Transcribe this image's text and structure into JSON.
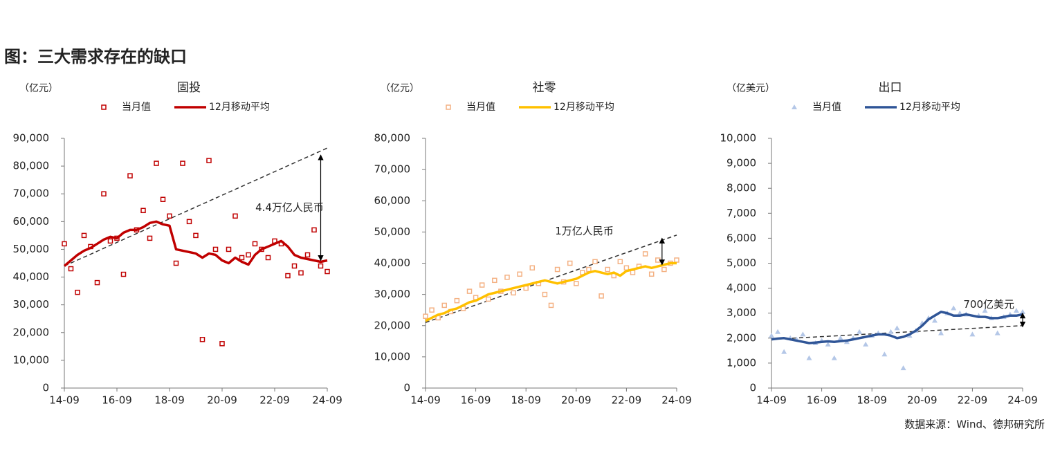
{
  "title": "图：三大需求存在的缺口",
  "source": "数据来源：Wind、德邦研究所",
  "chart_data": [
    {
      "type": "scatter-line",
      "title": "固投",
      "unit": "（亿元）",
      "x": [
        0,
        3,
        6,
        9,
        12,
        15,
        18,
        21,
        24,
        27,
        30,
        33,
        36,
        39,
        42,
        45,
        48,
        51,
        54,
        57,
        60,
        63,
        66,
        69,
        72,
        75,
        78,
        81,
        84,
        87,
        90,
        93,
        96,
        99,
        102,
        105,
        108,
        111,
        114,
        117,
        120
      ],
      "series": [
        {
          "name": "当月值",
          "kind": "scatter",
          "marker": "square",
          "color": "#c00000",
          "values": [
            52000,
            43000,
            34500,
            55000,
            51000,
            38000,
            70000,
            53000,
            54000,
            41000,
            76500,
            57000,
            64000,
            54000,
            81000,
            68000,
            62000,
            45000,
            81000,
            60000,
            55000,
            17500,
            82000,
            50000,
            16000,
            50000,
            62000,
            47000,
            48000,
            52000,
            50000,
            47000,
            53000,
            52000,
            40500,
            44000,
            41500,
            48000,
            57000,
            44000,
            42000
          ]
        },
        {
          "name": "12月移动平均",
          "kind": "line",
          "color": "#c00000",
          "values": [
            44000,
            46000,
            48000,
            49500,
            50500,
            52000,
            53500,
            54500,
            54000,
            56000,
            57000,
            57000,
            58000,
            59500,
            60000,
            59000,
            58500,
            50000,
            49500,
            49000,
            48500,
            47000,
            48500,
            48000,
            46000,
            45000,
            47000,
            45500,
            44500,
            48000,
            50000,
            51000,
            52000,
            53000,
            51000,
            48000,
            47000,
            46500,
            46000,
            45500,
            46000
          ]
        }
      ],
      "trend": {
        "x": [
          0,
          120
        ],
        "values": [
          44000,
          86500
        ]
      },
      "annotation": {
        "text": "4.4万亿人民币",
        "x": 117,
        "y_from": 84000,
        "y_to": 46000
      },
      "xlim": [
        0,
        120
      ],
      "ylim": [
        0,
        90000
      ],
      "xticks": [
        {
          "value": 0,
          "label": "14-09"
        },
        {
          "value": 24,
          "label": "16-09"
        },
        {
          "value": 48,
          "label": "18-09"
        },
        {
          "value": 72,
          "label": "20-09"
        },
        {
          "value": 96,
          "label": "22-09"
        },
        {
          "value": 120,
          "label": "24-09"
        }
      ],
      "yticks": [
        0,
        {
          "value": 10000,
          "label": "10,000"
        },
        {
          "value": 20000,
          "label": "20,000"
        },
        {
          "value": 30000,
          "label": "30,000"
        },
        {
          "value": 40000,
          "label": "40,000"
        },
        {
          "value": 50000,
          "label": "50,000"
        },
        {
          "value": 60000,
          "label": "60,000"
        },
        {
          "value": 70000,
          "label": "70,000"
        },
        {
          "value": 80000,
          "label": "80,000"
        },
        {
          "value": 90000,
          "label": "90,000"
        }
      ]
    },
    {
      "type": "scatter-line",
      "title": "社零",
      "unit": "（亿元）",
      "x": [
        0,
        3,
        6,
        9,
        12,
        15,
        18,
        21,
        24,
        27,
        30,
        33,
        36,
        39,
        42,
        45,
        48,
        51,
        54,
        57,
        60,
        63,
        66,
        69,
        72,
        75,
        78,
        81,
        84,
        87,
        90,
        93,
        96,
        99,
        102,
        105,
        108,
        111,
        114,
        117,
        120
      ],
      "series": [
        {
          "name": "当月值",
          "kind": "scatter",
          "marker": "square",
          "color": "#f4b183",
          "values": [
            23000,
            25000,
            22500,
            26500,
            24500,
            28000,
            25500,
            31000,
            29000,
            33000,
            28500,
            34500,
            31000,
            35500,
            30500,
            36500,
            32000,
            38500,
            33500,
            30000,
            26500,
            38000,
            34000,
            40000,
            33500,
            37000,
            38000,
            40500,
            29500,
            38000,
            36000,
            40500,
            38500,
            37000,
            39000,
            43000,
            36500,
            41000,
            38000,
            40000,
            41000
          ]
        },
        {
          "name": "12月移动平均",
          "kind": "line",
          "color": "#ffc000",
          "values": [
            21500,
            22500,
            23500,
            24000,
            25000,
            25500,
            26500,
            27500,
            28000,
            29000,
            30000,
            30500,
            31000,
            31500,
            32000,
            32500,
            33000,
            33500,
            34000,
            34500,
            34000,
            33500,
            34000,
            34500,
            35000,
            36000,
            37000,
            37500,
            37000,
            36500,
            37000,
            36000,
            37500,
            38000,
            38500,
            39000,
            38500,
            39000,
            39500,
            40000,
            40000
          ]
        }
      ],
      "trend": {
        "x": [
          0,
          120
        ],
        "values": [
          21000,
          49000
        ]
      },
      "annotation": {
        "text": "1万亿人民币",
        "x": 113,
        "y_from": 48000,
        "y_to": 39500
      },
      "xlim": [
        0,
        120
      ],
      "ylim": [
        0,
        80000
      ],
      "xticks": [
        {
          "value": 0,
          "label": "14-09"
        },
        {
          "value": 24,
          "label": "16-09"
        },
        {
          "value": 48,
          "label": "18-09"
        },
        {
          "value": 72,
          "label": "20-09"
        },
        {
          "value": 96,
          "label": "22-09"
        },
        {
          "value": 120,
          "label": "24-09"
        }
      ],
      "yticks": [
        0,
        {
          "value": 10000,
          "label": "10,000"
        },
        {
          "value": 20000,
          "label": "20,000"
        },
        {
          "value": 30000,
          "label": "30,000"
        },
        {
          "value": 40000,
          "label": "40,000"
        },
        {
          "value": 50000,
          "label": "50,000"
        },
        {
          "value": 60000,
          "label": "60,000"
        },
        {
          "value": 70000,
          "label": "70,000"
        },
        {
          "value": 80000,
          "label": "80,000"
        }
      ]
    },
    {
      "type": "scatter-line",
      "title": "出口",
      "unit": "（亿美元）",
      "x": [
        0,
        3,
        6,
        9,
        12,
        15,
        18,
        21,
        24,
        27,
        30,
        33,
        36,
        39,
        42,
        45,
        48,
        51,
        54,
        57,
        60,
        63,
        66,
        69,
        72,
        75,
        78,
        81,
        84,
        87,
        90,
        93,
        96,
        99,
        102,
        105,
        108,
        111,
        114,
        117,
        120
      ],
      "series": [
        {
          "name": "当月值",
          "kind": "scatter",
          "marker": "triangle",
          "color": "#b4c7e7",
          "values": [
            2100,
            2250,
            1450,
            2000,
            1950,
            2150,
            1200,
            1800,
            1900,
            1750,
            1200,
            2000,
            1850,
            2000,
            2250,
            1750,
            2100,
            2200,
            1350,
            2250,
            2400,
            800,
            2100,
            2300,
            2600,
            2800,
            2700,
            2200,
            3000,
            3200,
            3000,
            2950,
            2150,
            2900,
            3100,
            2800,
            2200,
            2850,
            2950,
            3100,
            3050
          ]
        },
        {
          "name": "12月移动平均",
          "kind": "line",
          "color": "#2f5597",
          "values": [
            1950,
            1980,
            2000,
            1950,
            1900,
            1850,
            1800,
            1820,
            1850,
            1870,
            1850,
            1880,
            1900,
            1950,
            2000,
            2050,
            2100,
            2150,
            2150,
            2100,
            2000,
            2050,
            2150,
            2300,
            2500,
            2750,
            2900,
            3050,
            3000,
            2900,
            2900,
            2950,
            2900,
            2850,
            2850,
            2800,
            2800,
            2850,
            2900,
            2900,
            2950
          ]
        }
      ],
      "trend": {
        "x": [
          0,
          120
        ],
        "values": [
          1950,
          2500
        ]
      },
      "annotation": {
        "text": "700亿美元",
        "x": 120,
        "y_from": 3000,
        "y_to": 2450
      },
      "xlim": [
        0,
        120
      ],
      "ylim": [
        0,
        10000
      ],
      "xticks": [
        {
          "value": 0,
          "label": "14-09"
        },
        {
          "value": 24,
          "label": "16-09"
        },
        {
          "value": 48,
          "label": "18-09"
        },
        {
          "value": 72,
          "label": "20-09"
        },
        {
          "value": 96,
          "label": "22-09"
        },
        {
          "value": 120,
          "label": "24-09"
        }
      ],
      "yticks": [
        0,
        {
          "value": 1000,
          "label": "1,000"
        },
        {
          "value": 2000,
          "label": "2,000"
        },
        {
          "value": 3000,
          "label": "3,000"
        },
        {
          "value": 4000,
          "label": "4,000"
        },
        {
          "value": 5000,
          "label": "5,000"
        },
        {
          "value": 6000,
          "label": "6,000"
        },
        {
          "value": 7000,
          "label": "7,000"
        },
        {
          "value": 8000,
          "label": "8,000"
        },
        {
          "value": 9000,
          "label": "9,000"
        },
        {
          "value": 10000,
          "label": "10,000"
        }
      ]
    }
  ]
}
